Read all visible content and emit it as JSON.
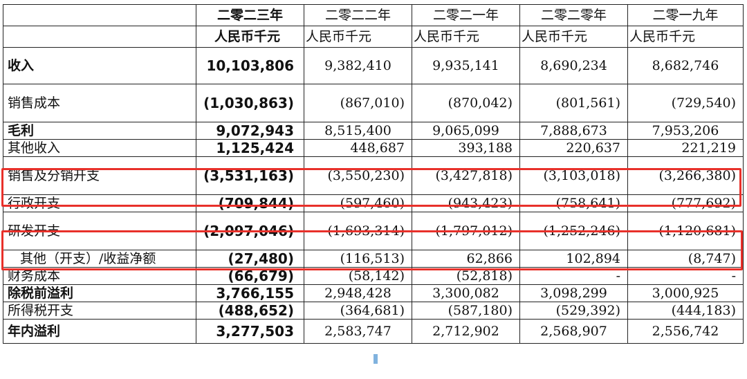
{
  "header": {
    "years": [
      "二零二三年",
      "二零二二年",
      "二零二一年",
      "二零二零年",
      "二零一九年"
    ],
    "unit": "人民币千元"
  },
  "rows": [
    {
      "label": "收入",
      "values": [
        "10,103,806",
        "9,382,410",
        "9,935,141",
        "8,690,234",
        "8,682,746"
      ]
    },
    {
      "label": "销售成本",
      "values": [
        "(1,030,863)",
        "(867,010)",
        "(870,042)",
        "(801,561)",
        "(729,540)"
      ]
    },
    {
      "label": "毛利",
      "values": [
        "9,072,943",
        "8,515,400",
        "9,065,099",
        "7,888,673",
        "7,953,206"
      ]
    },
    {
      "label": "其他收入",
      "values": [
        "1,125,424",
        "448,687",
        "393,188",
        "220,637",
        "221,219"
      ]
    },
    {
      "label": "销售及分销开支",
      "values": [
        "(3,531,163)",
        "(3,550,230)",
        "(3,427,818)",
        "(3,103,018)",
        "(3,266,380)"
      ]
    },
    {
      "label": "行政开支",
      "values": [
        "(709,844)",
        "(597,460)",
        "(943,423)",
        "(758,641)",
        "(777,692)"
      ]
    },
    {
      "label": "研发开支",
      "values": [
        "(2,097,046)",
        "(1,693,314)",
        "(1,797,012)",
        "(1,252,246)",
        "(1,120,681)"
      ]
    },
    {
      "label": "其他（开支）/收益净额",
      "values": [
        "(27,480)",
        "(116,513)",
        "62,866",
        "102,894",
        "(8,747)"
      ]
    },
    {
      "label": "财务成本",
      "values": [
        "(66,679)",
        "(58,142)",
        "(52,818)",
        "-",
        "-"
      ]
    },
    {
      "label": "除税前溢利",
      "values": [
        "3,766,155",
        "2,948,428",
        "3,300,082",
        "3,098,299",
        "3,000,925"
      ]
    },
    {
      "label": "所得税开支",
      "values": [
        "(488,652)",
        "(364,681)",
        "(587,180)",
        "(529,392)",
        "(444,183)"
      ]
    },
    {
      "label": "年内溢利",
      "values": [
        "3,277,503",
        "2,583,747",
        "2,712,902",
        "2,568,907",
        "2,556,742"
      ]
    }
  ],
  "colors": {
    "highlight": "#e8302a"
  }
}
